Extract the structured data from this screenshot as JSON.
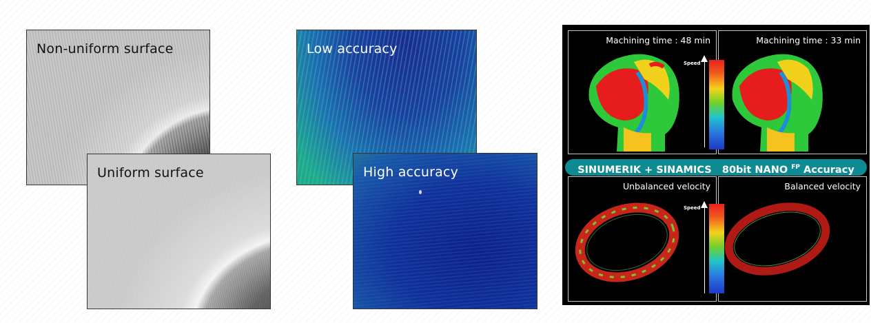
{
  "left_images": {
    "top_label": "Non-uniform surface",
    "bottom_label": "Uniform surface"
  },
  "middle_images": {
    "top_label": "Low accuracy",
    "bottom_label": "High accuracy"
  },
  "simulation": {
    "top_left_title": "Machining time : 48 min",
    "top_right_title": "Machining time : 33 min",
    "banner_left": "SINUMERIK + SINAMICS",
    "banner_right_prefix": "80bit NANO ",
    "banner_superscript": "FP",
    "banner_right_suffix": " Accuracy",
    "bottom_left_title": "Unbalanced velocity",
    "bottom_right_title": "Balanced velocity",
    "speed_label": "Speed",
    "banner_color": "#0e8a93"
  }
}
